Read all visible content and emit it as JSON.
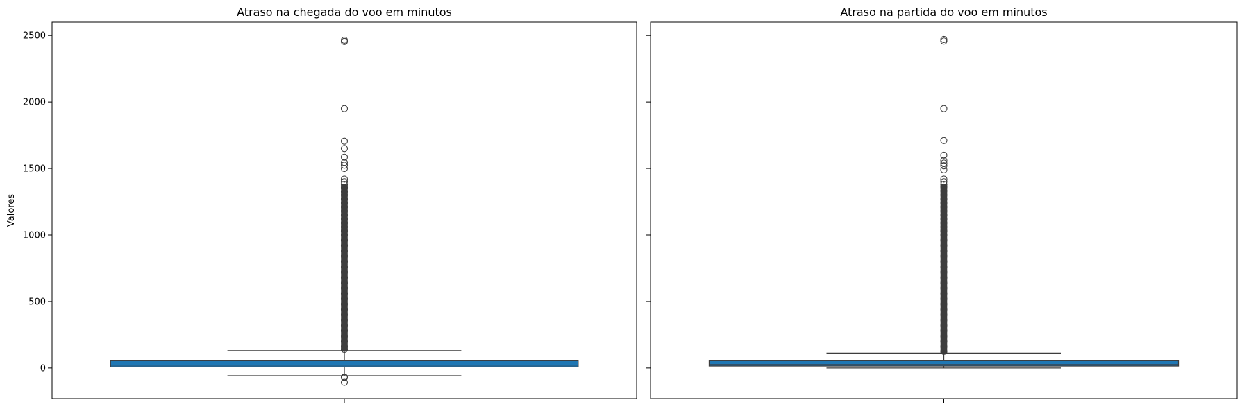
{
  "chart_data": [
    {
      "type": "box",
      "title": "Atraso na chegada do voo em minutos",
      "ylabel": "Valores",
      "ylim": [
        -230,
        2600
      ],
      "yticks": [
        0,
        500,
        1000,
        1500,
        2000,
        2500
      ],
      "box": {
        "q1": 8,
        "median": 22,
        "q3": 55,
        "whisker_low": -58,
        "whisker_high": 130,
        "color": "#1f77b4"
      },
      "outliers": [
        2465,
        2455,
        1950,
        1705,
        1650,
        1585,
        1545,
        1525,
        1500,
        1420,
        1400,
        1380,
        1355,
        1325,
        1300,
        1270,
        1240,
        1210,
        1180,
        1150,
        1120,
        1090,
        1060,
        1030,
        1000,
        960,
        920,
        880,
        840,
        800,
        760,
        720,
        680,
        640,
        600,
        560,
        520,
        480,
        440,
        400,
        360,
        320,
        280,
        240,
        200,
        160,
        140,
        -68,
        -72,
        -108
      ]
    },
    {
      "type": "box",
      "title": "Atraso na partida do voo em minutos",
      "ylabel": "",
      "ylim": [
        -230,
        2600
      ],
      "yticks": [
        0,
        500,
        1000,
        1500,
        2000,
        2500
      ],
      "box": {
        "q1": 15,
        "median": 25,
        "q3": 55,
        "whisker_low": 0,
        "whisker_high": 112,
        "color": "#1f77b4"
      },
      "outliers": [
        2470,
        2458,
        1950,
        1710,
        1600,
        1560,
        1540,
        1520,
        1490,
        1420,
        1400,
        1380,
        1360,
        1330,
        1300,
        1270,
        1240,
        1210,
        1180,
        1150,
        1120,
        1090,
        1060,
        1030,
        1000,
        960,
        920,
        880,
        840,
        800,
        760,
        720,
        680,
        640,
        600,
        560,
        520,
        480,
        440,
        400,
        360,
        320,
        280,
        240,
        200,
        160,
        125
      ]
    }
  ]
}
